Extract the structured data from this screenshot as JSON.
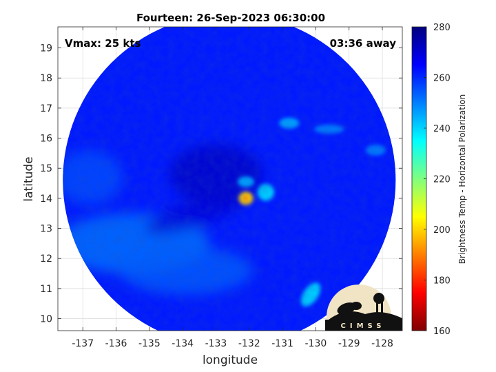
{
  "chart_data": {
    "type": "heatmap",
    "title": "Fourteen: 26-Sep-2023 06:30:00",
    "annotations": {
      "top_left": "Vmax: 25 kts",
      "top_right": "03:36 away"
    },
    "xlabel": "longitude",
    "ylabel": "latitude",
    "xlim": [
      -137.75,
      -127.4
    ],
    "ylim": [
      9.6,
      19.7
    ],
    "xticks": [
      -137,
      -136,
      -135,
      -134,
      -133,
      -132,
      -131,
      -130,
      -129,
      -128
    ],
    "yticks": [
      10,
      11,
      12,
      13,
      14,
      15,
      16,
      17,
      18,
      19
    ],
    "grid": true,
    "swath": {
      "center_lon": -132.6,
      "center_lat": 14.6,
      "radius_deg": 5.0
    },
    "colorbar": {
      "label": "Brightness Temp - Horizontal Polarization",
      "min": 160,
      "max": 280,
      "ticks": [
        160,
        180,
        200,
        220,
        240,
        260,
        280
      ],
      "colormap": [
        "#7f0000",
        "#ff0000",
        "#ff7f00",
        "#ffff00",
        "#7fff7f",
        "#00ffff",
        "#007fff",
        "#0000ff",
        "#00007f"
      ]
    },
    "features": [
      {
        "name": "eye-core",
        "lon": -132.1,
        "lat": 14.0,
        "tb": 200
      },
      {
        "name": "eye-wall-east",
        "lon": -131.5,
        "lat": 14.2,
        "tb": 240
      },
      {
        "name": "eye-wall-north",
        "lon": -132.1,
        "lat": 14.55,
        "tb": 245
      },
      {
        "name": "convection-se",
        "lon": -130.15,
        "lat": 10.8,
        "tb": 240
      },
      {
        "name": "band-ne-1",
        "lon": -130.8,
        "lat": 16.5,
        "tb": 245
      },
      {
        "name": "band-ne-2",
        "lon": -129.6,
        "lat": 16.3,
        "tb": 250
      },
      {
        "name": "band-ne-3",
        "lon": -128.2,
        "lat": 15.6,
        "tb": 250
      },
      {
        "name": "warm-region-west",
        "lon": -135.5,
        "lat": 12.5,
        "tb": 252
      },
      {
        "name": "cold-center",
        "lon": -133.0,
        "lat": 14.8,
        "tb": 272
      }
    ]
  },
  "logo": {
    "text": "CIMSS"
  }
}
